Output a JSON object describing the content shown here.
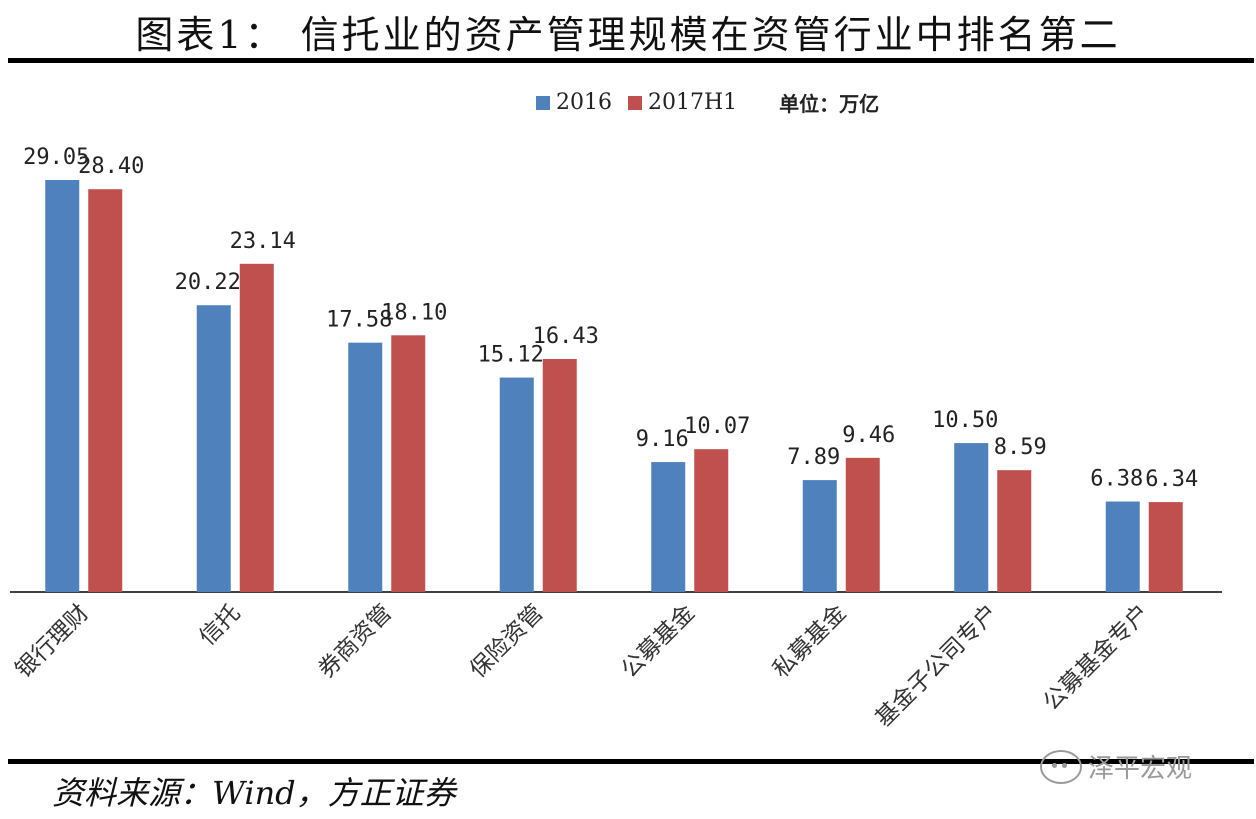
{
  "title": "图表1： 信托业的资产管理规模在资管行业中排名第二",
  "legend": {
    "unit": "单位：万亿"
  },
  "source": "资料来源：Wind，方正证券",
  "watermark": "泽平宏观",
  "colors": {
    "s2016": "#4F81BD",
    "s2017": "#C0504D",
    "axis": "#000000"
  },
  "chart_data": {
    "type": "bar",
    "categories": [
      "银行理财",
      "信托",
      "券商资管",
      "保险资管",
      "公募基金",
      "私募基金",
      "基金子公司专户",
      "公募基金专户"
    ],
    "series": [
      {
        "name": "2016",
        "values": [
          29.05,
          20.22,
          17.58,
          15.12,
          9.16,
          7.89,
          10.5,
          6.38
        ],
        "labels": [
          "29.05",
          "20.22",
          "17.58",
          "15.12",
          "9.16",
          "7.89",
          "10.50",
          "6.38"
        ]
      },
      {
        "name": "2017H1",
        "values": [
          28.4,
          23.14,
          18.1,
          16.43,
          10.07,
          9.46,
          8.59,
          6.34
        ],
        "labels": [
          "28.40",
          "23.14",
          "18.10",
          "16.43",
          "10.07",
          "9.46",
          "8.59",
          "6.34"
        ]
      }
    ],
    "ylim": [
      0,
      29.05
    ],
    "grid": false,
    "legend_position": "top-center"
  }
}
